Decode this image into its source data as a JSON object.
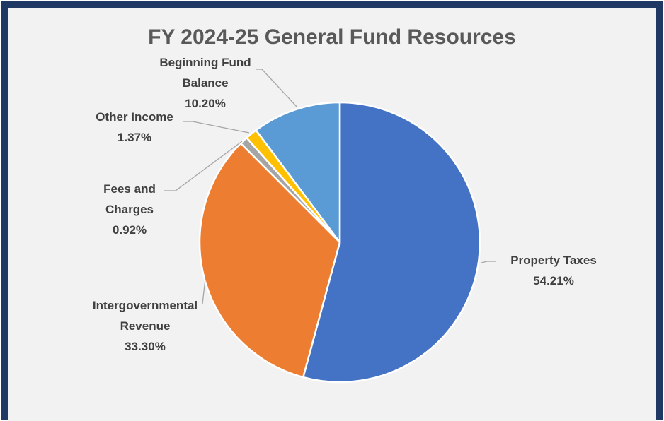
{
  "chart_data": {
    "type": "pie",
    "title": "FY 2024-25 General Fund Resources",
    "categories": [
      "Property Taxes",
      "Intergovernmental Revenue",
      "Fees and Charges",
      "Other Income",
      "Beginning Fund Balance"
    ],
    "values": [
      54.21,
      33.3,
      0.92,
      1.37,
      10.2
    ],
    "value_labels": [
      "54.21%",
      "33.30%",
      "0.92%",
      "1.37%",
      "10.20%"
    ],
    "colors": [
      "#4472c4",
      "#ed7d31",
      "#a5a5a5",
      "#ffc000",
      "#5b9bd5"
    ]
  }
}
